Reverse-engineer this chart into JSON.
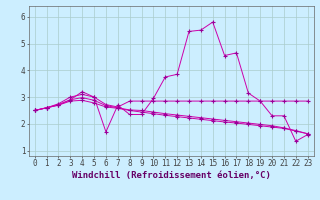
{
  "xlabel": "Windchill (Refroidissement éolien,°C)",
  "xlim": [
    -0.5,
    23.5
  ],
  "ylim": [
    0.8,
    6.4
  ],
  "xticks": [
    0,
    1,
    2,
    3,
    4,
    5,
    6,
    7,
    8,
    9,
    10,
    11,
    12,
    13,
    14,
    15,
    16,
    17,
    18,
    19,
    20,
    21,
    22,
    23
  ],
  "yticks": [
    1,
    2,
    3,
    4,
    5,
    6
  ],
  "bg_color": "#cceeff",
  "grid_color": "#aacccc",
  "line_color": "#cc00aa",
  "marker_color": "#990099",
  "series": [
    [
      2.5,
      2.6,
      2.7,
      2.9,
      3.2,
      3.0,
      1.7,
      2.7,
      2.35,
      2.35,
      2.95,
      3.75,
      3.85,
      5.45,
      5.5,
      5.8,
      4.55,
      4.65,
      3.15,
      2.85,
      2.3,
      2.3,
      1.35,
      1.6
    ],
    [
      2.5,
      2.6,
      2.75,
      3.0,
      3.1,
      3.0,
      2.72,
      2.63,
      2.85,
      2.85,
      2.85,
      2.85,
      2.85,
      2.85,
      2.85,
      2.85,
      2.85,
      2.85,
      2.85,
      2.85,
      2.85,
      2.85,
      2.85,
      2.85
    ],
    [
      2.5,
      2.6,
      2.7,
      2.85,
      2.88,
      2.78,
      2.63,
      2.58,
      2.5,
      2.44,
      2.38,
      2.32,
      2.27,
      2.22,
      2.17,
      2.12,
      2.07,
      2.03,
      1.98,
      1.93,
      1.88,
      1.83,
      1.73,
      1.63
    ],
    [
      2.5,
      2.6,
      2.72,
      2.9,
      2.98,
      2.88,
      2.68,
      2.6,
      2.52,
      2.5,
      2.44,
      2.38,
      2.33,
      2.28,
      2.23,
      2.18,
      2.13,
      2.08,
      2.03,
      1.98,
      1.93,
      1.85,
      1.75,
      1.63
    ]
  ],
  "xlabel_fontsize": 6.5,
  "tick_fontsize": 5.5
}
